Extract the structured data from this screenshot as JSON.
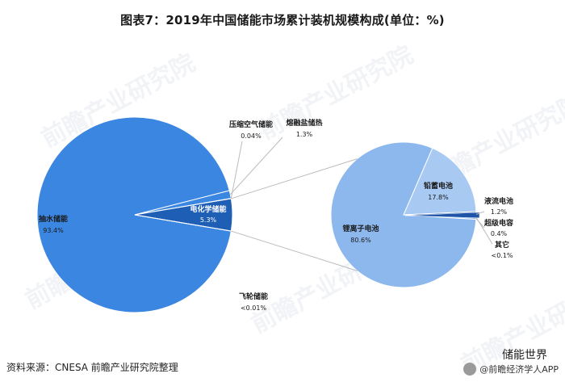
{
  "title": "图表7：2019年中国储能市场累计装机规模构成(单位：%)",
  "source": "资料来源：CNESA 前瞻产业研究院整理",
  "brand": {
    "top": "储能世界",
    "bottom": "@前瞻经济学人APP"
  },
  "watermark": "前瞻产业研究院",
  "colors": {
    "main_blue": "#3b86e0",
    "electrochem_dark": "#1e5fb5",
    "sub_light": "#8db8ee",
    "sub_lighter": "#a8c9f2",
    "sub_dark": "#1f55a8",
    "connector": "#bbbbbb"
  },
  "chart_data": [
    {
      "type": "pie",
      "title": "",
      "slices": [
        {
          "label": "抽水储能",
          "value": 93.4,
          "value_label": "93.4%"
        },
        {
          "label": "电化学储能",
          "value": 5.3,
          "value_label": "5.3%"
        },
        {
          "label": "熔融盐储热",
          "value": 1.3,
          "value_label": "1.3%"
        },
        {
          "label": "压缩空气储能",
          "value": 0.04,
          "value_label": "0.04%"
        },
        {
          "label": "飞轮储能",
          "value": 0.01,
          "value_label": "<0.01%"
        }
      ]
    },
    {
      "type": "pie",
      "title": "",
      "parent": "电化学储能",
      "slices": [
        {
          "label": "锂离子电池",
          "value": 80.6,
          "value_label": "80.6%"
        },
        {
          "label": "铅蓄电池",
          "value": 17.8,
          "value_label": "17.8%"
        },
        {
          "label": "液流电池",
          "value": 1.2,
          "value_label": "1.2%"
        },
        {
          "label": "超级电容",
          "value": 0.4,
          "value_label": "0.4%"
        },
        {
          "label": "其它",
          "value": 0.1,
          "value_label": "<0.1%"
        }
      ]
    }
  ]
}
